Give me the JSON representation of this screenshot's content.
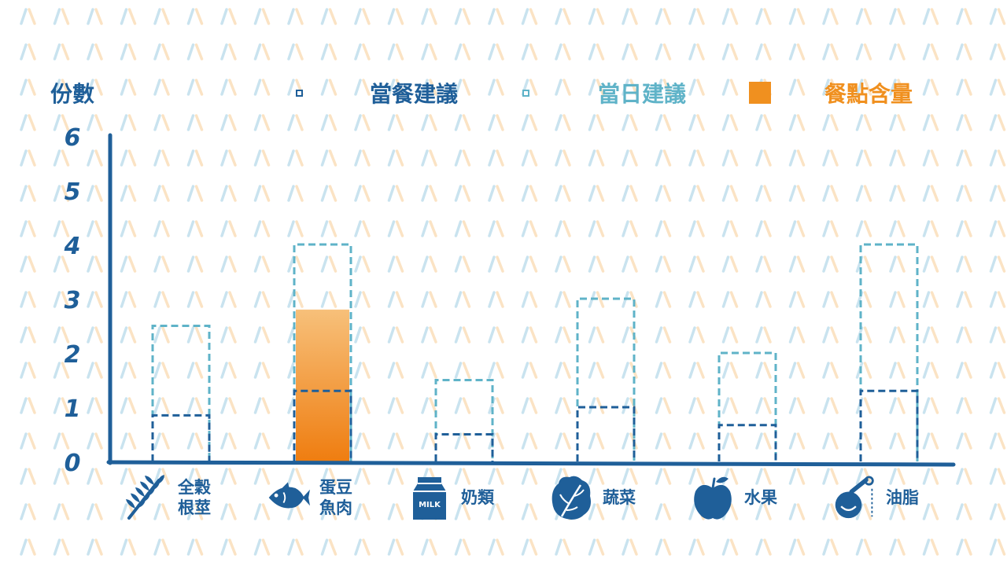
{
  "chart_data": {
    "type": "bar",
    "ylabel": "份數",
    "ylim": [
      0,
      6
    ],
    "yticks": [
      "0",
      "1",
      "2",
      "3",
      "4",
      "5",
      "6"
    ],
    "categories": [
      {
        "lines": [
          "全穀",
          "根莖"
        ],
        "icon": "wheat-icon"
      },
      {
        "lines": [
          "蛋豆",
          "魚肉"
        ],
        "icon": "fish-icon"
      },
      {
        "lines": [
          "奶類"
        ],
        "icon": "milk-carton-icon",
        "icon_text": "MILK"
      },
      {
        "lines": [
          "蔬菜"
        ],
        "icon": "lettuce-icon"
      },
      {
        "lines": [
          "水果"
        ],
        "icon": "apple-icon"
      },
      {
        "lines": [
          "油脂"
        ],
        "icon": "oil-bottle-icon"
      }
    ],
    "series": [
      {
        "name": "當餐建議",
        "style": "dashed-outline",
        "color": "#1f5f99",
        "values": [
          0.85,
          1.3,
          0.5,
          1.0,
          0.67,
          1.3
        ]
      },
      {
        "name": "當日建議",
        "style": "dashed-outline",
        "color": "#5fb3c8",
        "values": [
          2.5,
          4.0,
          1.5,
          3.0,
          2.0,
          4.0
        ]
      },
      {
        "name": "餐點含量",
        "style": "filled",
        "color": "#f0901f",
        "values": [
          0,
          2.8,
          0,
          0,
          0,
          0
        ]
      }
    ],
    "grid": false,
    "legend": "top"
  },
  "colors": {
    "axis": "#1f5f99",
    "fill_top": "#f7c07a",
    "fill_bottom": "#ef7d10",
    "pattern_blue": "#c9e3ef",
    "pattern_orange": "#fbe3c4"
  }
}
